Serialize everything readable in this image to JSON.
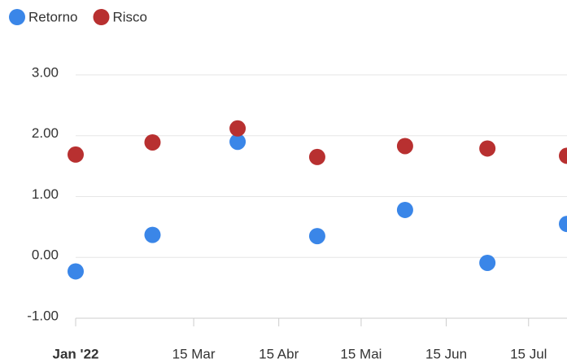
{
  "chart_data": {
    "type": "scatter",
    "x": [
      "2022-01-31",
      "2022-02-28",
      "2022-03-31",
      "2022-04-29",
      "2022-05-31",
      "2022-06-30",
      "2022-07-29"
    ],
    "series": [
      {
        "name": "Retorno",
        "color": "#3a86e8",
        "values": [
          -0.23,
          0.37,
          1.9,
          0.35,
          0.78,
          -0.09,
          0.55
        ]
      },
      {
        "name": "Risco",
        "color": "#b83030",
        "values": [
          1.69,
          1.89,
          2.12,
          1.65,
          1.83,
          1.79,
          1.67
        ]
      }
    ],
    "xlim": [
      "2022-01-31",
      "2022-07-29"
    ],
    "xticks": [
      {
        "value": "2022-01-31",
        "label": "Jan '22"
      },
      {
        "value": "2022-03-15",
        "label": "15 Mar"
      },
      {
        "value": "2022-04-15",
        "label": "15 Abr"
      },
      {
        "value": "2022-05-15",
        "label": "15 Mai"
      },
      {
        "value": "2022-06-15",
        "label": "15 Jun"
      },
      {
        "value": "2022-07-15",
        "label": "15 Jul"
      }
    ],
    "ylim": [
      -1,
      3
    ],
    "yticks": [
      {
        "value": -1,
        "label": "-1.00"
      },
      {
        "value": 0,
        "label": "0.00"
      },
      {
        "value": 1,
        "label": "1.00"
      },
      {
        "value": 2,
        "label": "2.00"
      },
      {
        "value": 3,
        "label": "3.00"
      }
    ],
    "grid": true,
    "legend": "top-left"
  }
}
